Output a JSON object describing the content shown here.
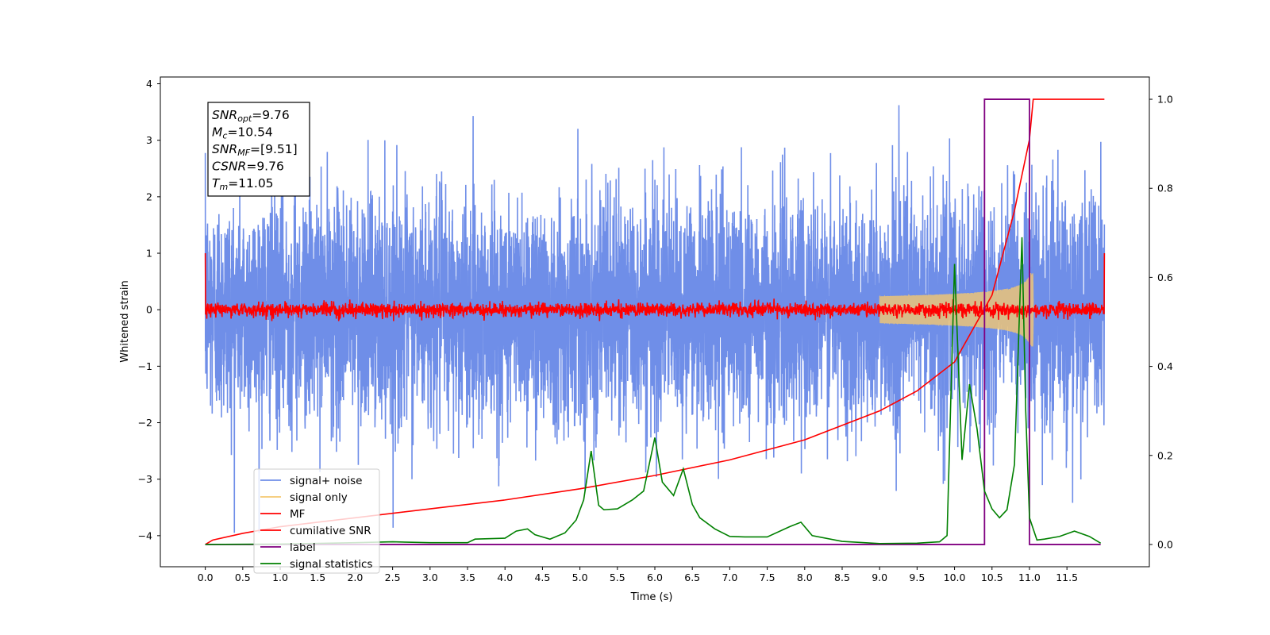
{
  "chart_data": {
    "type": "line",
    "xlabel": "Time (s)",
    "ylabel": "Whitened strain",
    "xlim": [
      -0.6,
      12.6
    ],
    "ylim": [
      -4.55,
      4.12
    ],
    "ylim_right": [
      -0.05,
      1.05
    ],
    "x_ticks": [
      "0.0",
      "0.5",
      "1.0",
      "1.5",
      "2.0",
      "2.5",
      "3.0",
      "3.5",
      "4.0",
      "4.5",
      "5.0",
      "5.5",
      "6.0",
      "6.5",
      "7.0",
      "7.5",
      "8.0",
      "8.5",
      "9.0",
      "9.5",
      "10.0",
      "10.5",
      "11.0",
      "11.5"
    ],
    "y_ticks_left": [
      "4",
      "3",
      "2",
      "1",
      "0",
      "−1",
      "−2",
      "−3",
      "−4"
    ],
    "y_ticks_right": [
      "1.0",
      "0.8",
      "0.6",
      "0.4",
      "0.2",
      "0.0"
    ],
    "legend_position": "lower-left",
    "legend": [
      {
        "name": "signal+ noise",
        "color": "#6f8ee8"
      },
      {
        "name": "signal only",
        "color": "#f4c870"
      },
      {
        "name": "MF",
        "color": "#ff0000"
      },
      {
        "name": "cumilative SNR",
        "color": "#ff0000"
      },
      {
        "name": "label",
        "color": "#800080"
      },
      {
        "name": "signal statistics",
        "color": "#008000"
      }
    ],
    "info_box": [
      {
        "sym": "SNR",
        "sub": "opt",
        "val": "=9.76"
      },
      {
        "sym": "M",
        "sub": "c",
        "val": "=10.54"
      },
      {
        "sym": "SNR",
        "sub": "MF",
        "val": "=[9.51]"
      },
      {
        "sym": "CSNR",
        "sub": "",
        "val": "=9.76"
      },
      {
        "sym": "T",
        "sub": "m",
        "val": "=11.05"
      }
    ],
    "series": [
      {
        "name": "signal+ noise",
        "axis": "left",
        "color": "#6f8ee8",
        "sigma": 1.0,
        "t_range": [
          0,
          12.0
        ]
      },
      {
        "name": "signal only",
        "axis": "left",
        "color": "#f4c870",
        "t_range": [
          9.0,
          11.05
        ],
        "amp_max": 0.65
      },
      {
        "name": "MF",
        "axis": "left",
        "color": "#ff0000",
        "t_range": [
          0,
          12.0
        ],
        "sigma": 0.06,
        "end_values": [
          1.0,
          1.0
        ]
      },
      {
        "name": "cumilative SNR",
        "axis": "right",
        "color": "#ff0000",
        "x": [
          0.0,
          0.1,
          0.5,
          1.0,
          2.0,
          3.0,
          4.0,
          5.0,
          6.0,
          7.0,
          8.0,
          9.0,
          9.5,
          10.0,
          10.5,
          10.8,
          11.0,
          11.05,
          12.0
        ],
        "y": [
          0.0,
          0.01,
          0.025,
          0.04,
          0.06,
          0.08,
          0.1,
          0.125,
          0.155,
          0.19,
          0.235,
          0.3,
          0.345,
          0.41,
          0.56,
          0.75,
          0.91,
          1.0,
          1.0
        ]
      },
      {
        "name": "label",
        "axis": "right",
        "color": "#800080",
        "x": [
          0.0,
          10.4,
          10.4,
          11.0,
          11.0,
          11.95
        ],
        "y": [
          0.0,
          0.0,
          1.0,
          1.0,
          0.0,
          0.0
        ]
      },
      {
        "name": "signal statistics",
        "axis": "right",
        "color": "#008000",
        "x": [
          0.0,
          1.0,
          2.0,
          2.5,
          3.0,
          3.5,
          3.6,
          4.0,
          4.15,
          4.3,
          4.4,
          4.6,
          4.8,
          4.95,
          5.05,
          5.15,
          5.25,
          5.32,
          5.5,
          5.7,
          5.85,
          6.0,
          6.1,
          6.25,
          6.38,
          6.5,
          6.6,
          6.8,
          7.0,
          7.2,
          7.5,
          7.8,
          7.95,
          8.1,
          8.5,
          9.0,
          9.5,
          9.8,
          9.9,
          10.0,
          10.1,
          10.2,
          10.3,
          10.4,
          10.5,
          10.6,
          10.7,
          10.8,
          10.9,
          10.95,
          11.0,
          11.1,
          11.2,
          11.4,
          11.6,
          11.8,
          11.95
        ],
        "y": [
          0.0,
          0.001,
          0.004,
          0.006,
          0.004,
          0.004,
          0.012,
          0.014,
          0.03,
          0.035,
          0.022,
          0.012,
          0.026,
          0.055,
          0.1,
          0.21,
          0.088,
          0.078,
          0.08,
          0.1,
          0.12,
          0.24,
          0.14,
          0.11,
          0.17,
          0.09,
          0.06,
          0.035,
          0.018,
          0.017,
          0.017,
          0.04,
          0.05,
          0.02,
          0.007,
          0.002,
          0.003,
          0.006,
          0.02,
          0.63,
          0.19,
          0.36,
          0.26,
          0.12,
          0.08,
          0.06,
          0.078,
          0.18,
          0.69,
          0.3,
          0.06,
          0.01,
          0.012,
          0.018,
          0.03,
          0.018,
          0.003
        ]
      }
    ]
  }
}
